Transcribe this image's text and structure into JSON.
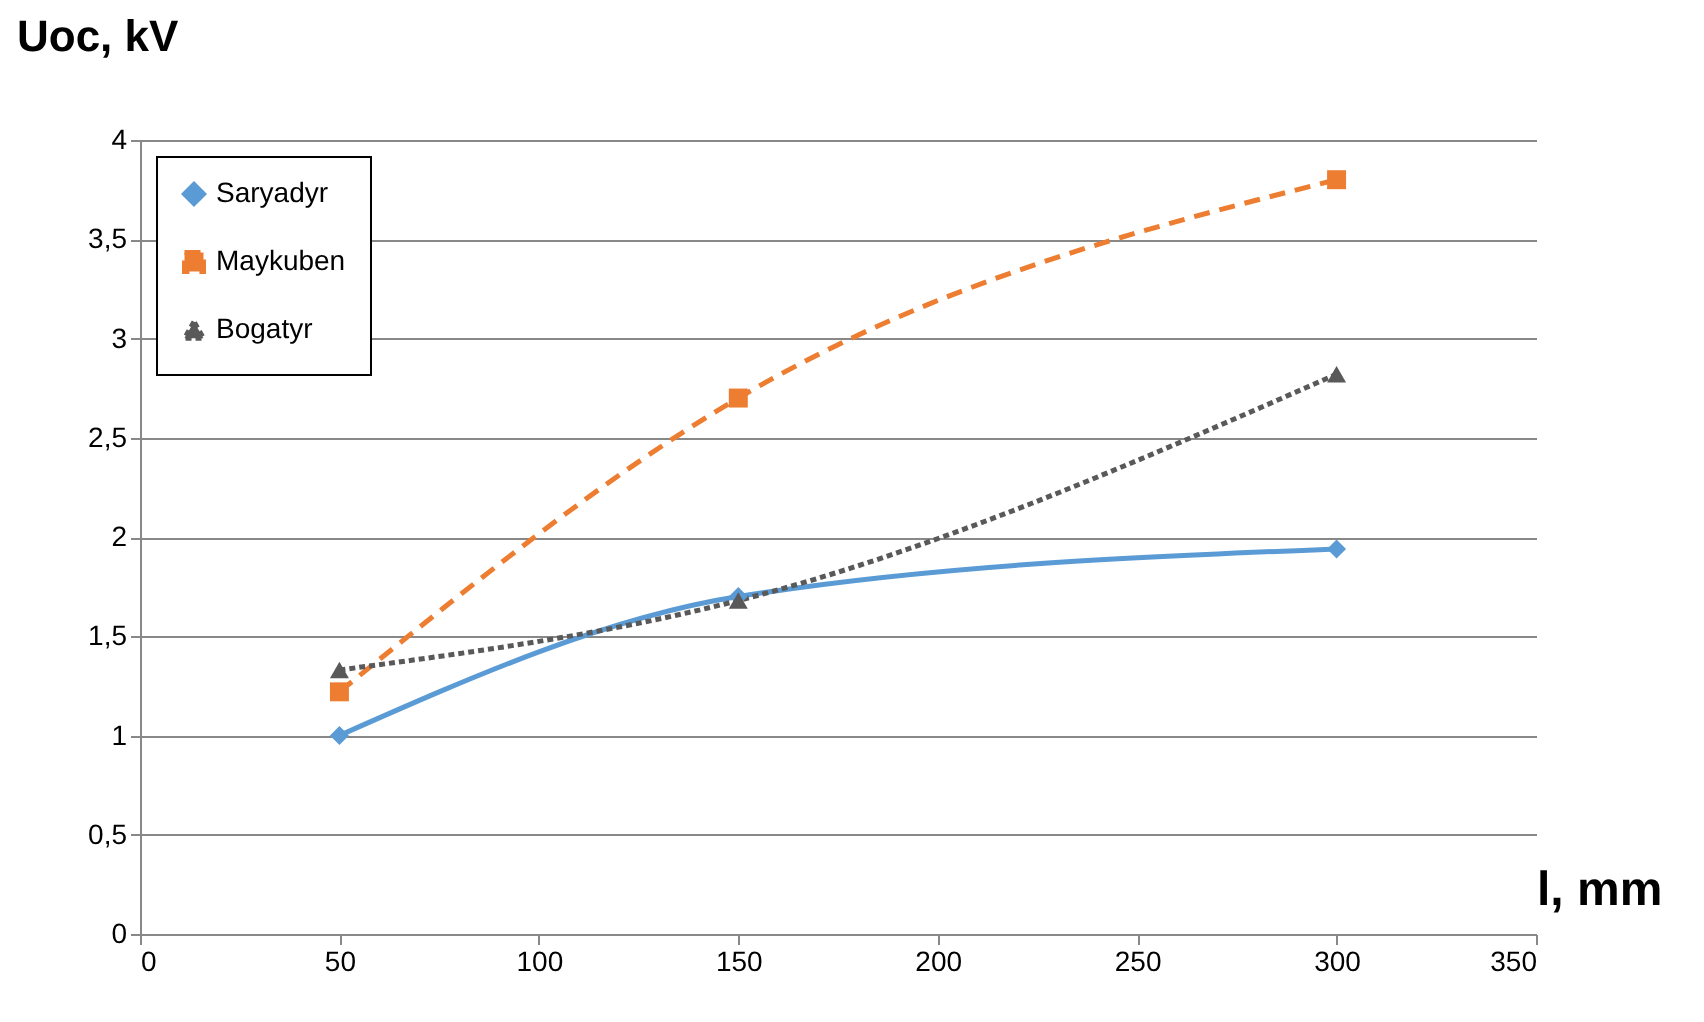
{
  "chart_data": {
    "type": "line",
    "xlabel": "l, mm",
    "ylabel": "Uoc, kV",
    "x": [
      50,
      150,
      300
    ],
    "series": [
      {
        "name": "Saryadyr",
        "color": "#5b9bd5",
        "values": [
          1.0,
          1.7,
          1.94
        ],
        "marker": "diamond",
        "line_style": "solid"
      },
      {
        "name": "Maykuben",
        "color": "#ed7d31",
        "values": [
          1.22,
          2.7,
          3.8
        ],
        "marker": "square",
        "line_style": "dashed"
      },
      {
        "name": "Bogatyr",
        "color": "#595959",
        "values": [
          1.33,
          1.68,
          2.82
        ],
        "marker": "triangle",
        "line_style": "dotted"
      }
    ],
    "xlim": [
      0,
      350
    ],
    "xticks": [
      0,
      50,
      100,
      150,
      200,
      250,
      300,
      350
    ],
    "ylim": [
      0,
      4
    ],
    "yticks": [
      0,
      {
        "value": 0.5,
        "label": "0,5"
      },
      1,
      {
        "value": 1.5,
        "label": "1,5"
      },
      2,
      {
        "value": 2.5,
        "label": "2,5"
      },
      3,
      {
        "value": 3.5,
        "label": "3,5"
      },
      4
    ],
    "grid": "y",
    "legend": "top left"
  }
}
